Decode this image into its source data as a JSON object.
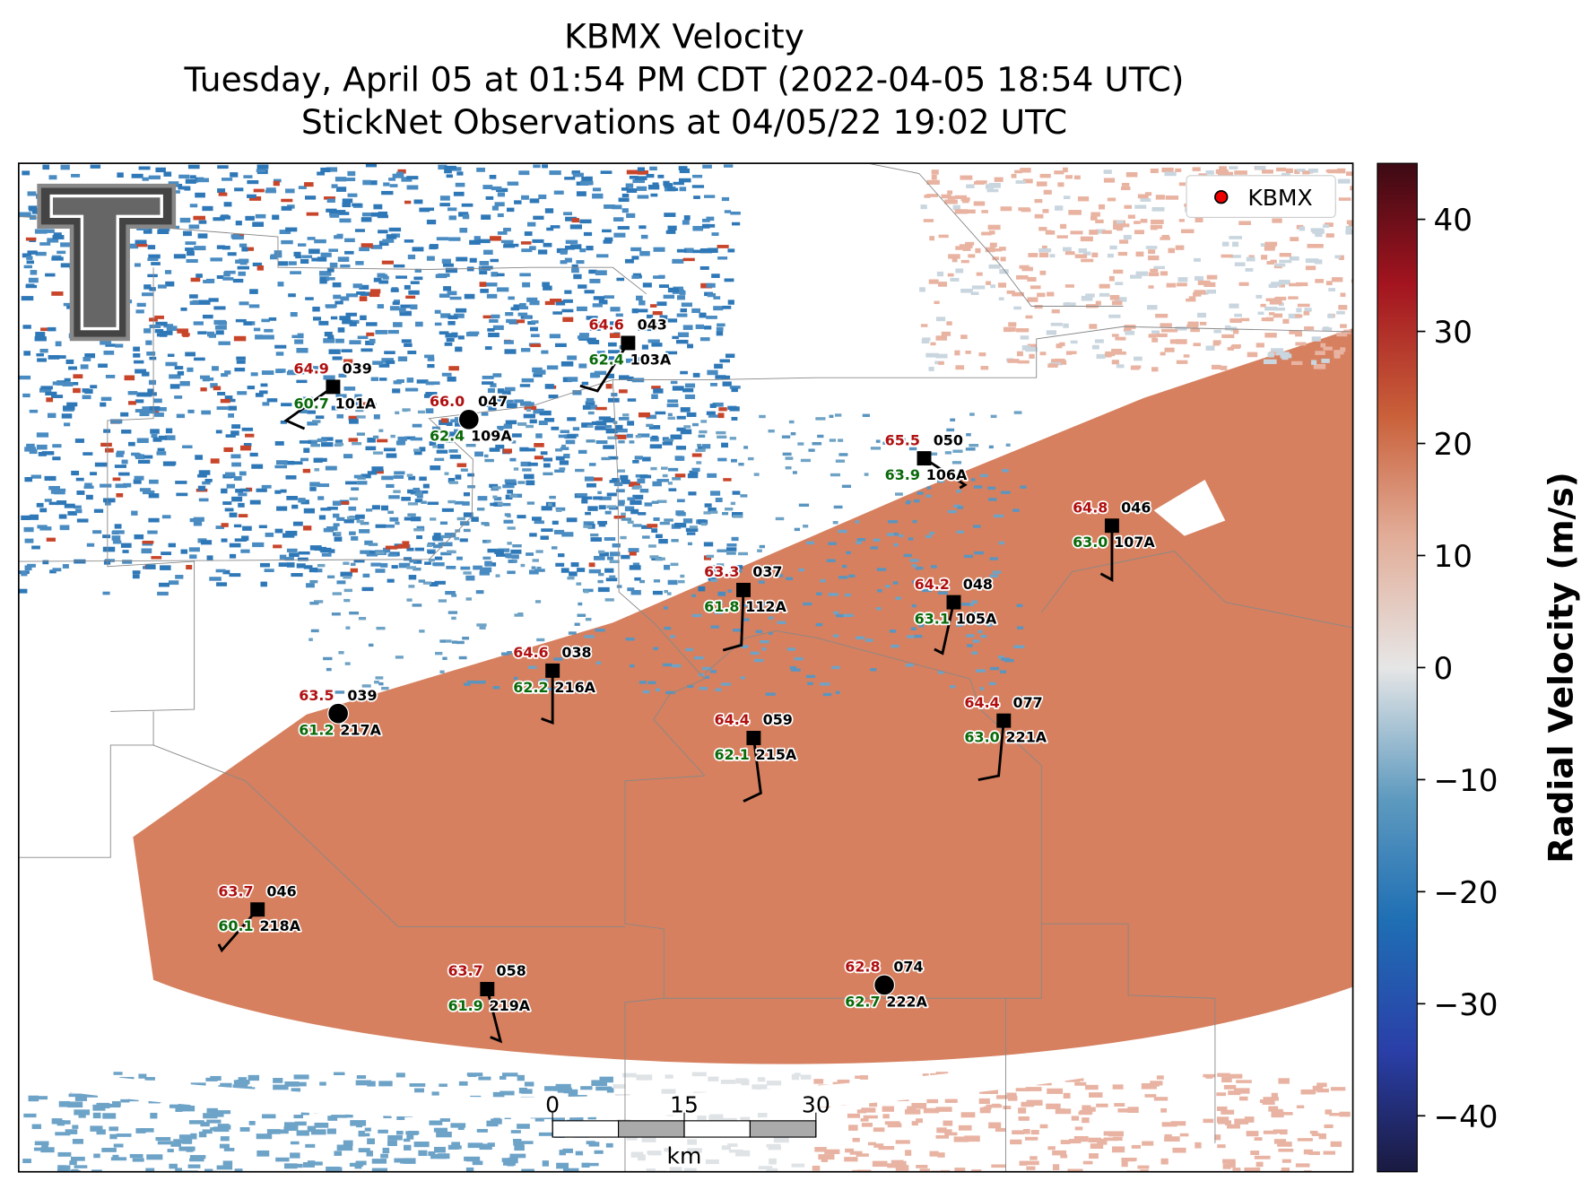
{
  "title": [
    "KBMX Velocity",
    "Tuesday, April 05 at 01:54 PM CDT (2022-04-05 18:54 UTC)",
    "StickNet Observations at 04/05/22 19:02 UTC"
  ],
  "legend": {
    "label": "KBMX"
  },
  "colorbar": {
    "label": "Radial Velocity (m/s)",
    "lim": [
      -45,
      45
    ],
    "ticks": [
      40,
      30,
      20,
      10,
      0,
      {
        "value": -10,
        "label": "−10"
      },
      {
        "value": -20,
        "label": "−20"
      },
      {
        "value": -30,
        "label": "−30"
      },
      {
        "value": -40,
        "label": "−40"
      }
    ]
  },
  "scale_bar": {
    "ticks": [
      0,
      15,
      30
    ],
    "unit": "km"
  },
  "stations": [
    {
      "id": "101A",
      "temperature": "64.9",
      "dewpoint": "60.7",
      "value": "039"
    },
    {
      "id": "109A",
      "temperature": "66.0",
      "dewpoint": "62.4",
      "value": "047"
    },
    {
      "id": "103A",
      "temperature": "64.6",
      "dewpoint": "62.4",
      "value": "043"
    },
    {
      "id": "106A",
      "temperature": "65.5",
      "dewpoint": "63.9",
      "value": "050"
    },
    {
      "id": "107A",
      "temperature": "64.8",
      "dewpoint": "63.0",
      "value": "046"
    },
    {
      "id": "112A",
      "temperature": "63.3",
      "dewpoint": "61.8",
      "value": "037"
    },
    {
      "id": "105A",
      "temperature": "64.2",
      "dewpoint": "63.1",
      "value": "048"
    },
    {
      "id": "216A",
      "temperature": "64.6",
      "dewpoint": "62.2",
      "value": "038"
    },
    {
      "id": "217A",
      "temperature": "63.5",
      "dewpoint": "61.2",
      "value": "039"
    },
    {
      "id": "215A",
      "temperature": "64.4",
      "dewpoint": "62.1",
      "value": "059"
    },
    {
      "id": "221A",
      "temperature": "64.4",
      "dewpoint": "63.0",
      "value": "077"
    },
    {
      "id": "218A",
      "temperature": "63.7",
      "dewpoint": "60.1",
      "value": "046"
    },
    {
      "id": "219A",
      "temperature": "63.7",
      "dewpoint": "61.9",
      "value": "058"
    },
    {
      "id": "222A",
      "temperature": "62.8",
      "dewpoint": "62.7",
      "value": "074"
    }
  ]
}
